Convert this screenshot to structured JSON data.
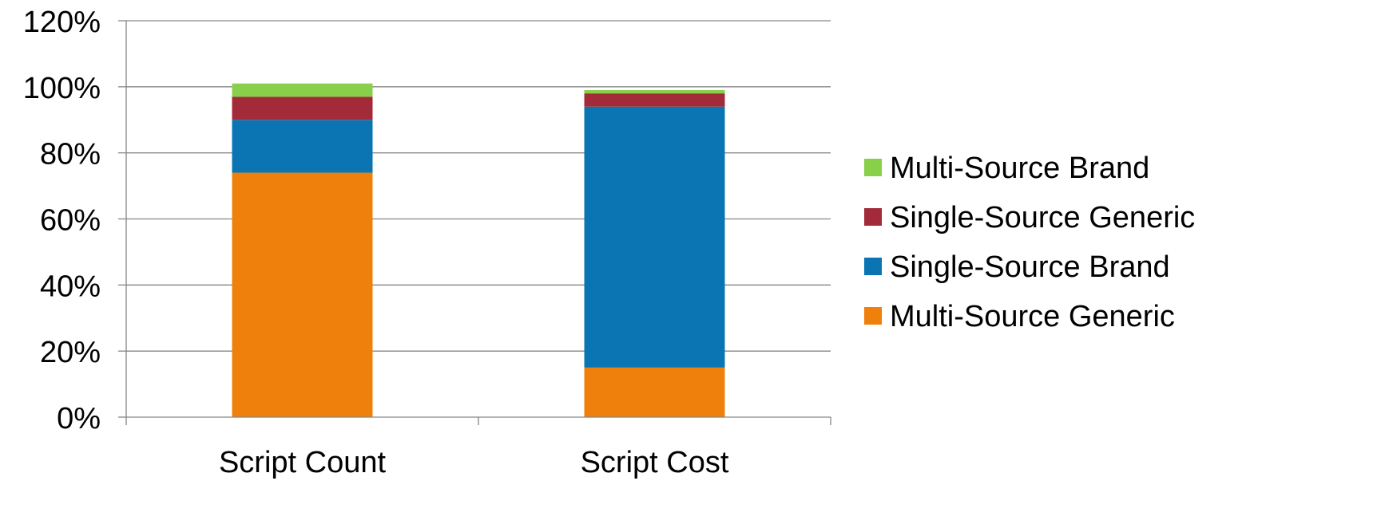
{
  "chart_data": {
    "type": "bar",
    "stacked": true,
    "title": "",
    "xlabel": "",
    "ylabel": "",
    "categories": [
      "Script Count",
      "Script Cost"
    ],
    "series": [
      {
        "name": "Multi-Source Generic",
        "values": [
          74,
          15
        ],
        "color": "#F0800C"
      },
      {
        "name": "Single-Source Brand",
        "values": [
          16,
          79
        ],
        "color": "#0B74B3"
      },
      {
        "name": "Single-Source Generic",
        "values": [
          7,
          4
        ],
        "color": "#A32A38"
      },
      {
        "name": "Multi-Source Brand",
        "values": [
          4,
          1
        ],
        "color": "#88CF4A"
      }
    ],
    "ylim": [
      0,
      120
    ],
    "yticks": [
      0,
      20,
      40,
      60,
      80,
      100,
      120
    ],
    "ytick_labels": [
      "0%",
      "20%",
      "40%",
      "60%",
      "80%",
      "100%",
      "120%"
    ],
    "grid": true,
    "legend_position": "right",
    "legend_order": [
      "Multi-Source Brand",
      "Single-Source Generic",
      "Single-Source Brand",
      "Multi-Source Generic"
    ],
    "axis_color": "#868686",
    "grid_color": "#868686"
  }
}
